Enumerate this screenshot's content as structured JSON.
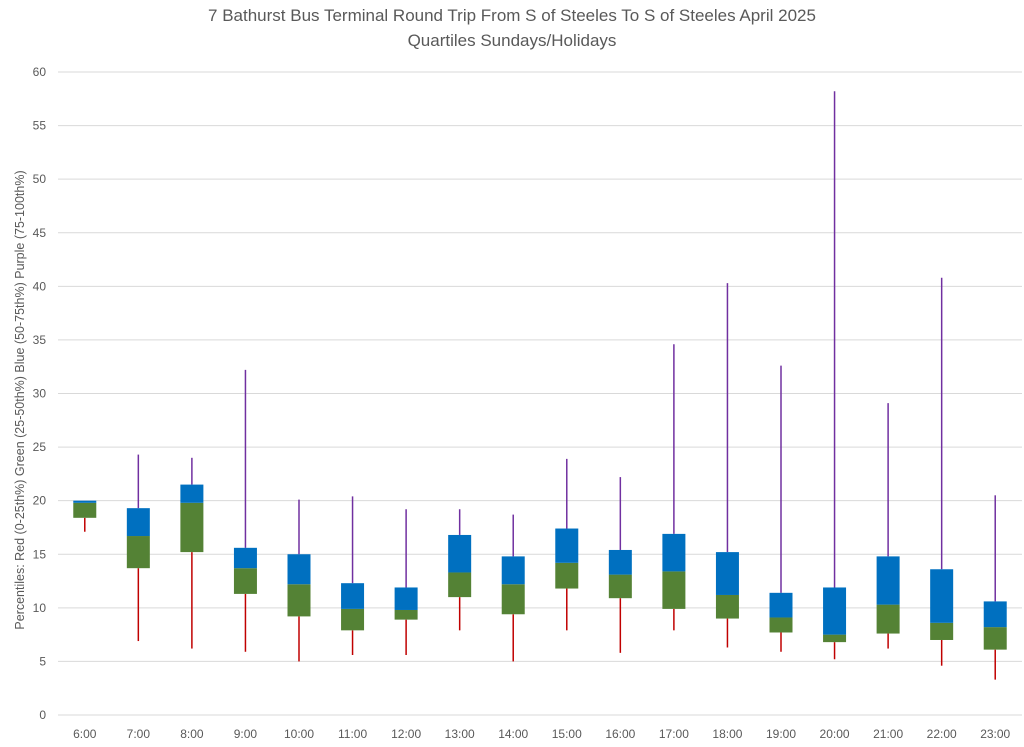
{
  "chart_data": {
    "type": "box",
    "title": "7 Bathurst Bus Terminal Round Trip From S of Steeles To S of Steeles April 2025",
    "subtitle": "Quartiles Sundays/Holidays",
    "ylabel": "Percentiles:  Red (0-25th%)  Green (25-50th%)  Blue (50-75th%)  Purple (75-100th%)",
    "xlabel": "",
    "ylim": [
      0,
      60
    ],
    "yticks": [
      0,
      5,
      10,
      15,
      20,
      25,
      30,
      35,
      40,
      45,
      50,
      55,
      60
    ],
    "grid": true,
    "colors": {
      "min_to_q1": "#C00000",
      "q1_to_median": "#548235",
      "median_to_q3": "#0070C0",
      "q3_to_max": "#7030A0",
      "grid": "#d9d9d9",
      "text": "#595959"
    },
    "categories": [
      "6:00",
      "7:00",
      "8:00",
      "9:00",
      "10:00",
      "11:00",
      "12:00",
      "13:00",
      "14:00",
      "15:00",
      "16:00",
      "17:00",
      "18:00",
      "19:00",
      "20:00",
      "21:00",
      "22:00",
      "23:00"
    ],
    "series": [
      {
        "name": "min",
        "values": [
          17.1,
          6.9,
          6.2,
          5.9,
          5.0,
          5.6,
          5.6,
          7.9,
          5.0,
          7.9,
          5.8,
          7.9,
          6.3,
          5.9,
          5.2,
          6.2,
          4.6,
          3.3
        ]
      },
      {
        "name": "q1",
        "values": [
          18.4,
          13.7,
          15.2,
          11.3,
          9.2,
          7.9,
          8.9,
          11.0,
          9.4,
          11.8,
          10.9,
          9.9,
          9.0,
          7.7,
          6.8,
          7.6,
          7.0,
          6.1
        ]
      },
      {
        "name": "median",
        "values": [
          19.8,
          16.7,
          19.8,
          13.7,
          12.2,
          9.9,
          9.8,
          13.3,
          12.2,
          14.2,
          13.1,
          13.4,
          11.2,
          9.1,
          7.5,
          10.3,
          8.6,
          8.2
        ]
      },
      {
        "name": "q3",
        "values": [
          20.0,
          19.3,
          21.5,
          15.6,
          15.0,
          12.3,
          11.9,
          16.8,
          14.8,
          17.4,
          15.4,
          16.9,
          15.2,
          11.4,
          11.9,
          14.8,
          13.6,
          10.6
        ]
      },
      {
        "name": "max",
        "values": [
          20.0,
          24.3,
          24.0,
          32.2,
          20.1,
          20.4,
          19.2,
          19.2,
          18.7,
          23.9,
          22.2,
          34.6,
          40.3,
          32.6,
          58.2,
          29.1,
          40.8,
          20.5
        ]
      }
    ]
  }
}
